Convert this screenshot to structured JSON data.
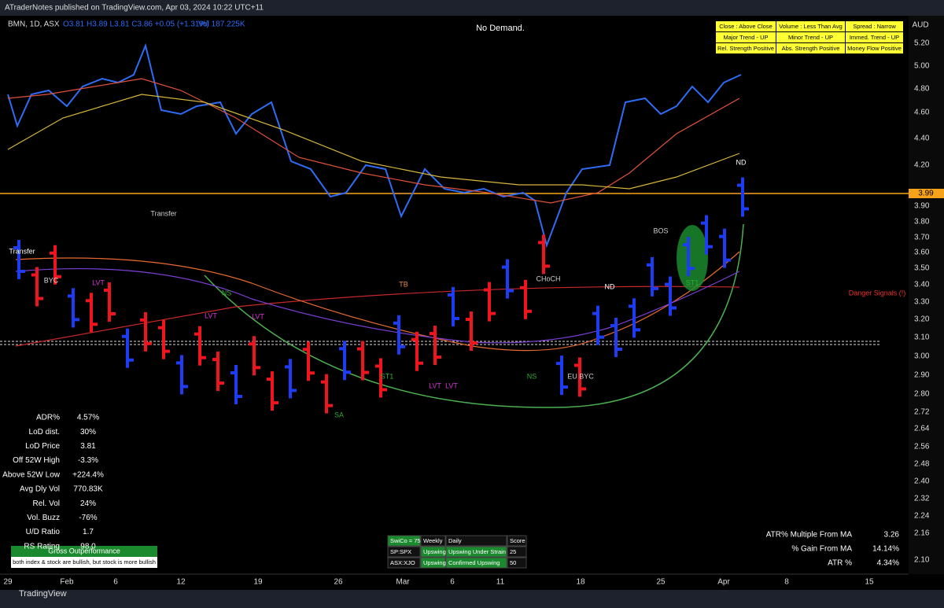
{
  "header": {
    "publisher": "ATraderNotes published on TradingView.com, Apr 03, 2024 10:22 UTC+11",
    "symbol": "BMN, 1D, ASX",
    "ohlc": "O3.81 H3.89 L3.81 C3.86 +0.05 (+1.31%)",
    "volume": "Vol 187.225K"
  },
  "title": "No Demand.",
  "status": [
    [
      "Close : Above Close",
      "Volume : Less Than Avg",
      "Spread : Narrow"
    ],
    [
      "Major Trend - UP",
      "Minor Trend - UP",
      "Immed. Trend - UP"
    ],
    [
      "Rel. Strength Positive",
      "Abs. Strength Positive",
      "Money Flow Positive"
    ]
  ],
  "price_axis": {
    "currency": "AUD",
    "last": "3.99",
    "ticks": [
      "5.20",
      "5.00",
      "4.80",
      "4.60",
      "4.40",
      "4.20",
      "3.90",
      "3.80",
      "3.70",
      "3.60",
      "3.50",
      "3.40",
      "3.30",
      "3.20",
      "3.10",
      "3.00",
      "2.90",
      "2.80",
      "2.72",
      "2.64",
      "2.56",
      "2.48",
      "2.40",
      "2.32",
      "2.24",
      "2.16",
      "2.10"
    ]
  },
  "time_axis": [
    "29",
    "Feb",
    "6",
    "12",
    "19",
    "26",
    "Mar",
    "6",
    "11",
    "18",
    "25",
    "Apr",
    "8",
    "15"
  ],
  "annotations": [
    "Transfer",
    "BYC",
    "LVT",
    "Transfer",
    "NS",
    "LVT",
    "LVT",
    "SA",
    "ST1",
    "TB",
    "LVT",
    "LVT",
    "NS",
    "EU BYC",
    "ND",
    "ND",
    "ST1",
    "BOS",
    "CHoCH",
    "Danger Signals (!)"
  ],
  "stats": [
    [
      "ADR%",
      "4.57%"
    ],
    [
      "LoD dist.",
      "30%"
    ],
    [
      "LoD Price",
      "3.81"
    ],
    [
      "Off 52W High",
      "-3.3%"
    ],
    [
      "Above 52W Low",
      "+224.4%"
    ],
    [
      "Avg Dly Vol",
      "770.83K"
    ],
    [
      "Rel. Vol",
      "24%"
    ],
    [
      "Vol. Buzz",
      "-76%"
    ],
    [
      "U/D Ratio",
      "1.7"
    ],
    [
      "RS Rating",
      "98.0"
    ]
  ],
  "performance": {
    "title": "Gross Outperformance",
    "note": "both index & stock are bullish, but stock is more bullish"
  },
  "trend_table": [
    [
      "SwiCo = 75",
      "Weekly",
      "Daily",
      "Score"
    ],
    [
      "SP:SPX",
      "Upswing",
      "Upswing Under Strain",
      "25"
    ],
    [
      "ASX:XJO",
      "Upswing",
      "Confirmed Upswing",
      "50"
    ]
  ],
  "atr": [
    [
      "ATR% Multiple From MA",
      "3.26"
    ],
    [
      "% Gain From MA",
      "14.14%"
    ],
    [
      "ATR %",
      "4.34%"
    ]
  ],
  "footer": "TradingView"
}
